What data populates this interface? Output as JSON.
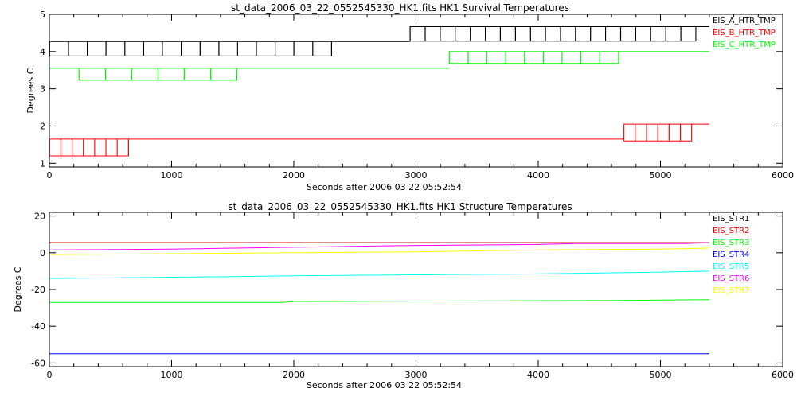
{
  "chart_data": [
    {
      "type": "line",
      "title": "st_data_2006_03_22_0552545330_HK1.fits HK1 Survival Temperatures",
      "xlabel": "Seconds after 2006 03 22 05:52:54",
      "ylabel": "Degrees C",
      "xlim": [
        0,
        6000
      ],
      "ylim": [
        0.9,
        5.0
      ],
      "xticks": [
        0,
        1000,
        2000,
        3000,
        4000,
        5000,
        6000
      ],
      "yticks": [
        1,
        2,
        3,
        4,
        5
      ],
      "legend_position": "top-right",
      "series": [
        {
          "name": "EIS_A_HTR_TMP",
          "color": "#000000",
          "style": "toggle",
          "low": 3.88,
          "high": 4.27,
          "x_start": 0,
          "x_end": 5400,
          "toggle_ranges": [
            [
              0,
              2420,
              5
            ],
            [
              2950,
              5380,
              4
            ]
          ],
          "base_ranges": [
            [
              0,
              2950,
              4.27
            ],
            [
              2950,
              5400,
              4.67
            ]
          ]
        },
        {
          "name": "EIS_B_HTR_TMP",
          "color": "#ff0000",
          "style": "toggle",
          "low": 1.2,
          "high": 1.65,
          "x_start": 0,
          "x_end": 5400,
          "toggle_ranges": [
            [
              0,
              650,
              3
            ],
            [
              4700,
              5260,
              3
            ]
          ],
          "base_ranges": [
            [
              0,
              4700,
              1.65
            ],
            [
              4700,
              5400,
              2.05
            ]
          ]
        },
        {
          "name": "EIS_C_HTR_TMP",
          "color": "#00ff00",
          "style": "toggle",
          "low": 3.23,
          "high": 3.55,
          "x_start": 0,
          "x_end": 5400,
          "toggle_ranges": [
            [
              240,
              1610,
              7
            ],
            [
              3270,
              4720,
              5
            ]
          ],
          "base_ranges": [
            [
              0,
              3270,
              3.55
            ],
            [
              3270,
              5400,
              4.0
            ]
          ]
        }
      ]
    },
    {
      "type": "line",
      "title": "st_data_2006_03_22_0552545330_HK1.fits HK1 Structure Temperatures",
      "xlabel": "Seconds after 2006 03 22 05:52:54",
      "ylabel": "Degrees C",
      "xlim": [
        0,
        6000
      ],
      "ylim": [
        -62,
        22
      ],
      "xticks": [
        0,
        1000,
        2000,
        3000,
        4000,
        5000,
        6000
      ],
      "yticks": [
        -60,
        -40,
        -20,
        0,
        20
      ],
      "legend_position": "top-right",
      "series": [
        {
          "name": "EIS_STR1",
          "color": "#000000",
          "x": [
            0,
            5400
          ],
          "y": [
            5.5,
            5.5
          ]
        },
        {
          "name": "EIS_STR2",
          "color": "#ff0000",
          "x": [
            0,
            5400
          ],
          "y": [
            5.5,
            5.5
          ]
        },
        {
          "name": "EIS_STR3",
          "color": "#00ff00",
          "x": [
            0,
            1900,
            2000,
            4500,
            5400
          ],
          "y": [
            -27,
            -27,
            -26.5,
            -26,
            -25.5
          ]
        },
        {
          "name": "EIS_STR4",
          "color": "#0000ff",
          "x": [
            0,
            5400
          ],
          "y": [
            -55,
            -55
          ]
        },
        {
          "name": "EIS_STR5",
          "color": "#00ffff",
          "x": [
            0,
            1500,
            2000,
            3000,
            4000,
            5000,
            5400
          ],
          "y": [
            -14,
            -13,
            -12.5,
            -12,
            -11.5,
            -10.5,
            -10
          ]
        },
        {
          "name": "EIS_STR6",
          "color": "#ff00ff",
          "x": [
            0,
            1000,
            2000,
            3000,
            4000,
            4300,
            5200,
            5400
          ],
          "y": [
            1.5,
            2,
            3,
            4,
            4.5,
            5,
            5,
            5.5
          ]
        },
        {
          "name": "EIS_STR7",
          "color": "#ffff00",
          "x": [
            0,
            1000,
            2000,
            3000,
            4000,
            5000,
            5400
          ],
          "y": [
            -1,
            -0.5,
            0,
            0.5,
            1.5,
            2,
            2.5
          ]
        }
      ]
    }
  ]
}
